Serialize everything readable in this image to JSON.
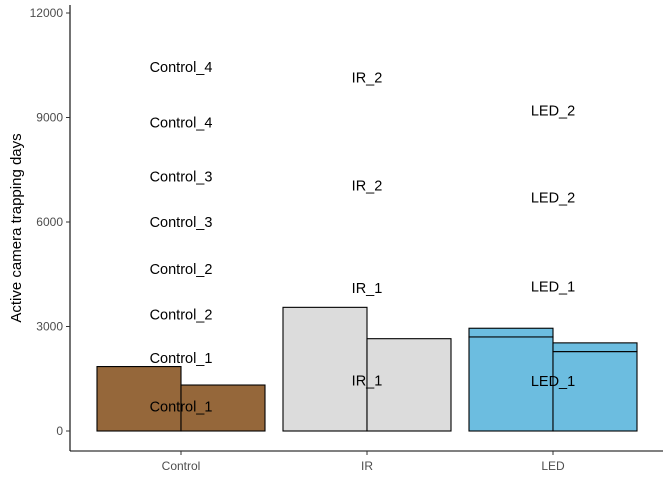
{
  "chart_data": {
    "type": "bar",
    "title": "",
    "xlabel": "",
    "ylabel": "Active camera trapping days",
    "ylim": [
      -500,
      12200
    ],
    "yticks": [
      0,
      3000,
      6000,
      9000,
      12000
    ],
    "grid": false,
    "legend": "none",
    "categories": [
      "Control",
      "IR",
      "LED"
    ],
    "colors": {
      "Control": "#95673a",
      "IR": "#dcdcdc",
      "LED": "#6cbde0",
      "outline": "#000000"
    },
    "bars": [
      {
        "category": "Control",
        "side": "left",
        "segments": [
          1850
        ]
      },
      {
        "category": "Control",
        "side": "right",
        "segments": [
          1320
        ]
      },
      {
        "category": "IR",
        "side": "left",
        "segments": [
          3550
        ]
      },
      {
        "category": "IR",
        "side": "right",
        "segments": [
          2650
        ]
      },
      {
        "category": "LED",
        "side": "left",
        "segments": [
          2700,
          250
        ]
      },
      {
        "category": "LED",
        "side": "right",
        "segments": [
          2280,
          250
        ]
      }
    ],
    "labels": [
      {
        "category": "Control",
        "text": "Control_1",
        "y": 700
      },
      {
        "category": "Control",
        "text": "Control_1",
        "y": 2100
      },
      {
        "category": "Control",
        "text": "Control_2",
        "y": 3350
      },
      {
        "category": "Control",
        "text": "Control_2",
        "y": 4650
      },
      {
        "category": "Control",
        "text": "Control_3",
        "y": 6000
      },
      {
        "category": "Control",
        "text": "Control_3",
        "y": 7300
      },
      {
        "category": "Control",
        "text": "Control_4",
        "y": 8850
      },
      {
        "category": "Control",
        "text": "Control_4",
        "y": 10450
      },
      {
        "category": "IR",
        "text": "IR_1",
        "y": 1450
      },
      {
        "category": "IR",
        "text": "IR_1",
        "y": 4100
      },
      {
        "category": "IR",
        "text": "IR_2",
        "y": 7050
      },
      {
        "category": "IR",
        "text": "IR_2",
        "y": 10150
      },
      {
        "category": "LED",
        "text": "LED_1",
        "y": 1430
      },
      {
        "category": "LED",
        "text": "LED_1",
        "y": 4150
      },
      {
        "category": "LED",
        "text": "LED_2",
        "y": 6700
      },
      {
        "category": "LED",
        "text": "LED_2",
        "y": 9200
      }
    ]
  }
}
